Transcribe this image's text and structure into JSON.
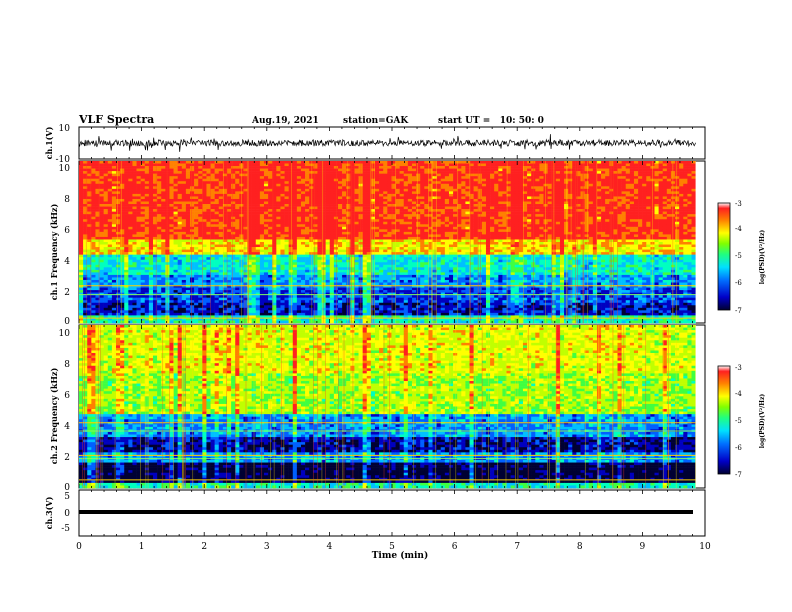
{
  "header": {
    "title": "VLF Spectra",
    "date": "Aug.19, 2021",
    "station": "station=GAK",
    "start_ut": "start UT =   10: 50: 0"
  },
  "colors": {
    "spectrogram_scale": [
      "#000033",
      "#0000c0",
      "#0060ff",
      "#00c0ff",
      "#00ffc0",
      "#40ff40",
      "#c0ff00",
      "#ffff00",
      "#ff8000",
      "#ff2020"
    ]
  },
  "chart_data": [
    {
      "type": "line",
      "panel": "waveform-ch1",
      "ylabel": "ch.1(V)",
      "xlim": [
        0,
        10
      ],
      "ylim": [
        -10,
        10
      ],
      "yticks": [
        "10",
        "-10"
      ],
      "mean_level": 0,
      "data_end": 9.85
    },
    {
      "type": "heatmap",
      "panel": "spectrogram-ch1",
      "ylabel": "ch.1 Frequency (kHz)",
      "xlim": [
        0,
        10
      ],
      "ylim": [
        0,
        10
      ],
      "yticks": [
        "0",
        "2",
        "4",
        "6",
        "8",
        "10"
      ],
      "data_end": 9.85,
      "colorbar": {
        "label": "log(PSD)(V²/Hz)",
        "ticks": [
          "-3",
          "-4",
          "-5",
          "-6",
          "-7"
        ],
        "range": [
          -7,
          -3
        ]
      },
      "profile": [
        {
          "f": [
            0,
            0.5
          ],
          "level": 0.45
        },
        {
          "f": [
            0.5,
            1.2
          ],
          "level": 0.15
        },
        {
          "f": [
            1.2,
            2.2
          ],
          "level": 0.22
        },
        {
          "f": [
            2.2,
            3.0
          ],
          "level": 0.3
        },
        {
          "f": [
            3.0,
            4.2
          ],
          "level": 0.42
        },
        {
          "f": [
            4.2,
            5.2
          ],
          "level": 0.75
        },
        {
          "f": [
            5.2,
            10
          ],
          "level": 0.93
        }
      ],
      "lines_khz": [
        0.3,
        1.75,
        2.3
      ]
    },
    {
      "type": "heatmap",
      "panel": "spectrogram-ch2",
      "ylabel": "ch.2 Frequency (kHz)",
      "xlim": [
        0,
        10
      ],
      "ylim": [
        0,
        10
      ],
      "yticks": [
        "0",
        "2",
        "4",
        "6",
        "8",
        "10"
      ],
      "data_end": 9.85,
      "colorbar": {
        "label": "log(PSD)(V²/Hz)",
        "ticks": [
          "-3",
          "-4",
          "-5",
          "-6",
          "-7"
        ],
        "range": [
          -7,
          -3
        ]
      },
      "profile": [
        {
          "f": [
            0,
            0.3
          ],
          "level": 0.45
        },
        {
          "f": [
            0.3,
            1.6
          ],
          "level": 0.03
        },
        {
          "f": [
            1.6,
            2.2
          ],
          "level": 0.3
        },
        {
          "f": [
            2.2,
            3.2
          ],
          "level": 0.12
        },
        {
          "f": [
            3.2,
            4.5
          ],
          "level": 0.3
        },
        {
          "f": [
            4.5,
            7.0
          ],
          "level": 0.62
        },
        {
          "f": [
            7.0,
            10
          ],
          "level": 0.7
        }
      ],
      "lines_khz": [
        0.5,
        1.8,
        2.0,
        3.5,
        4.0
      ]
    },
    {
      "type": "line",
      "panel": "waveform-ch3",
      "ylabel": "ch.3(V)",
      "xlim": [
        0,
        10
      ],
      "ylim": [
        -5,
        5
      ],
      "yticks": [
        "5",
        "0",
        "-5"
      ],
      "mean_level": 0,
      "data_end": 10,
      "xlabel": "Time (min)",
      "xticks": [
        "0",
        "1",
        "2",
        "3",
        "4",
        "5",
        "6",
        "7",
        "8",
        "9",
        "10"
      ]
    }
  ]
}
